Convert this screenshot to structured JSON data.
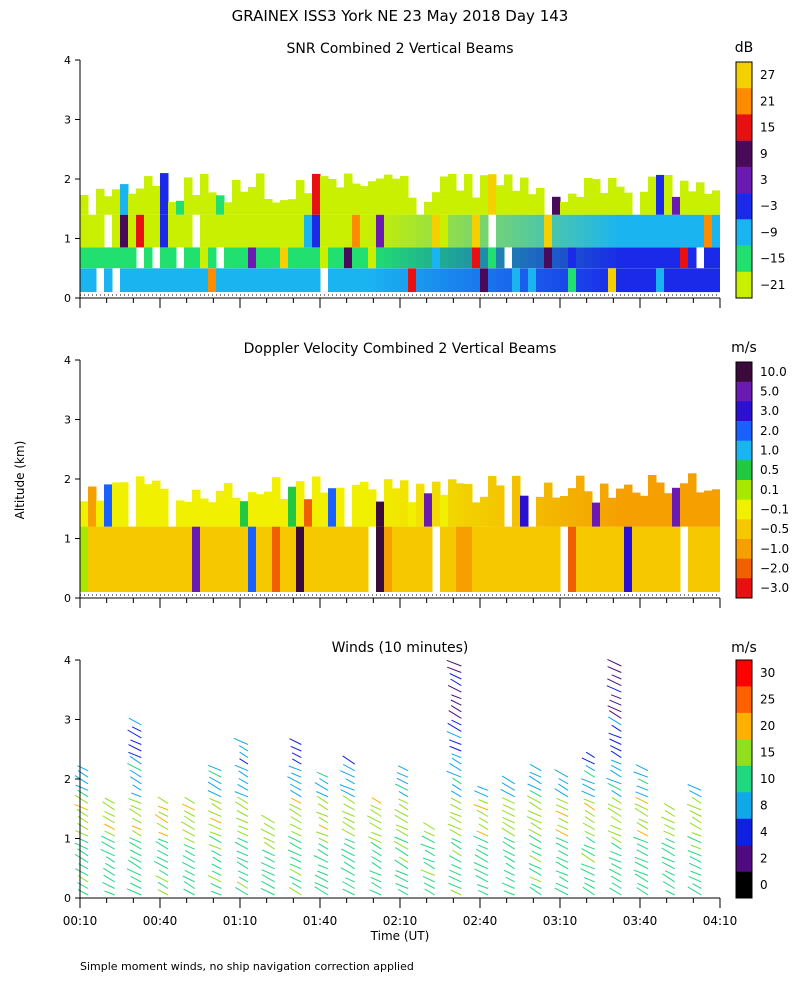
{
  "page_title": "GRAINEX ISS3 York NE  23 May 2018 Day 143",
  "footnote": "Simple moment winds, no ship navigation correction applied",
  "shared_axes": {
    "ylabel": "Altitude (km)",
    "xlabel": "Time (UT)",
    "x_tick_labels": [
      "00:10",
      "00:40",
      "01:10",
      "01:40",
      "02:10",
      "02:40",
      "03:10",
      "03:40",
      "04:10"
    ],
    "y_tick_labels": [
      "0",
      "1",
      "2",
      "3",
      "4"
    ],
    "xlim": [
      "00:10",
      "04:10"
    ],
    "ylim": [
      0,
      4
    ]
  },
  "chart_data": [
    {
      "id": "snr",
      "type": "heatmap",
      "title": "SNR Combined 2 Vertical Beams",
      "unit": "dB",
      "colorbar_labels": [
        "27",
        "21",
        "15",
        "9",
        "3",
        "−3",
        "−9",
        "−15",
        "−21"
      ],
      "colorbar_colors": [
        "#f5d000",
        "#ff8c00",
        "#e81010",
        "#4a0a5a",
        "#6a1ab0",
        "#1a2ae8",
        "#1ab4f0",
        "#22e070",
        "#c8f000"
      ],
      "altitude_bands_km": [
        {
          "min": 0.1,
          "max": 0.5,
          "early": "#1ab4f0",
          "late": "#1a2ae8"
        },
        {
          "min": 0.5,
          "max": 0.85,
          "early": "#22e070",
          "late": "#1a2ae8"
        },
        {
          "min": 0.85,
          "max": 1.4,
          "early": "#c8f000",
          "late": "#1ab4f0"
        },
        {
          "min": 1.4,
          "max": 2.1,
          "early": "#c8f000",
          "late": "#c8f000"
        }
      ]
    },
    {
      "id": "doppler",
      "type": "heatmap",
      "title": "Doppler Velocity Combined 2 Vertical Beams",
      "unit": "m/s",
      "colorbar_labels": [
        "10.0",
        "5.0",
        "3.0",
        "2.0",
        "1.0",
        "0.5",
        "0.1",
        "−0.1",
        "−0.5",
        "−1.0",
        "−2.0",
        "−3.0"
      ],
      "colorbar_colors": [
        "#3a0a3a",
        "#6a1ab0",
        "#2a10d0",
        "#1a60ff",
        "#1ab4f0",
        "#22c840",
        "#a8e800",
        "#f0f000",
        "#f5c800",
        "#f5a000",
        "#f06000",
        "#e81010"
      ],
      "altitude_bands_km": [
        {
          "min": 0.1,
          "max": 1.2,
          "early": "#f5c800",
          "late": "#f5c800"
        },
        {
          "min": 1.2,
          "max": 2.1,
          "early": "#f0f000",
          "late": "#f5a000"
        }
      ]
    },
    {
      "id": "winds",
      "type": "scatter",
      "title": "Winds (10 minutes)",
      "unit": "m/s",
      "colorbar_labels": [
        "30",
        "25",
        "20",
        "15",
        "10",
        "8",
        "4",
        "2",
        "0"
      ],
      "colorbar_colors": [
        "#ff0000",
        "#ff6000",
        "#ffb000",
        "#90e020",
        "#20d880",
        "#10a8e8",
        "#1020e0",
        "#500a80",
        "#000000"
      ],
      "profile_times": [
        "00:10",
        "00:20",
        "00:30",
        "00:40",
        "00:50",
        "01:00",
        "01:10",
        "01:20",
        "01:30",
        "01:40",
        "01:50",
        "02:00",
        "02:10",
        "02:20",
        "02:30",
        "02:40",
        "02:50",
        "03:00",
        "03:10",
        "03:20",
        "03:30",
        "03:40",
        "03:50",
        "04:00"
      ],
      "profile_top_km": [
        2.2,
        1.6,
        3.0,
        1.7,
        1.7,
        2.2,
        2.6,
        1.3,
        2.6,
        2.1,
        2.3,
        1.6,
        2.2,
        1.2,
        4.0,
        1.9,
        2.0,
        2.2,
        2.1,
        2.4,
        4.0,
        2.2,
        1.5,
        1.9
      ]
    }
  ]
}
